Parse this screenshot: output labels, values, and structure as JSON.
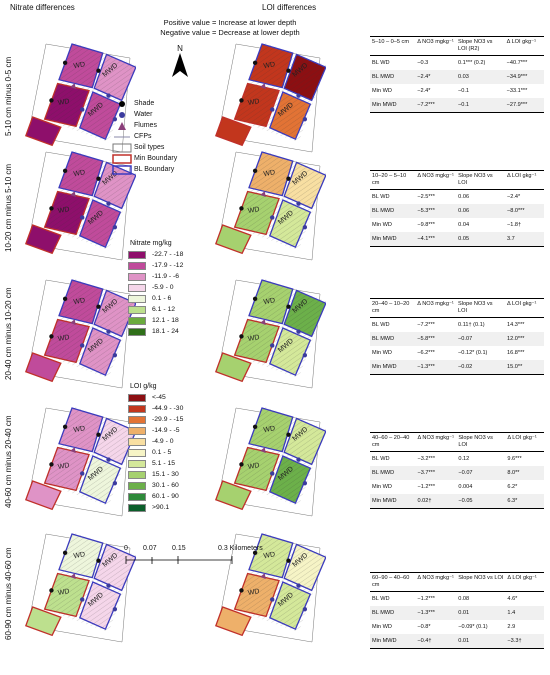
{
  "headers": {
    "nitrate": "Nitrate differences",
    "loi": "LOI differences"
  },
  "notes": {
    "positive": "Positive value = Increase at lower depth",
    "negative": "Negative value = Decrease at lower depth"
  },
  "north": "N",
  "rows": [
    "5-10 cm minus 0-5 cm",
    "10-20 cm minus 5-10 cm",
    "20-40 cm minus 10-20 cm",
    "40-60 cm minus 20-40 cm",
    "60-90 cm minus 40-60 cm"
  ],
  "map_labels": [
    "WD",
    "MWD",
    "WD",
    "MWD"
  ],
  "symbols": [
    {
      "label": "Shade",
      "icon": "black-dot"
    },
    {
      "label": "Water",
      "icon": "blue-dot"
    },
    {
      "label": "Flumes",
      "icon": "purple-triangle"
    },
    {
      "label": "CFPs",
      "icon": "gray-line"
    },
    {
      "label": "Soil types",
      "icon": "gray-box"
    },
    {
      "label": "Min Boundary",
      "icon": "red-box"
    },
    {
      "label": "BL Boundary",
      "icon": "blue-box"
    }
  ],
  "nitrate_legend": {
    "title": "Nitrate mg/kg",
    "items": [
      {
        "label": "-22.7 - -18",
        "color": "#8e0f6b"
      },
      {
        "label": "-17.9 - -12",
        "color": "#c04b9b"
      },
      {
        "label": "-11.9 - -6",
        "color": "#df93c6"
      },
      {
        "label": "-5.9 - 0",
        "color": "#f5d6ea"
      },
      {
        "label": "0.1 - 6",
        "color": "#eef6dc"
      },
      {
        "label": "6.1 - 12",
        "color": "#bde08e"
      },
      {
        "label": "12.1 - 18",
        "color": "#6bab3e"
      },
      {
        "label": "18.1 - 24",
        "color": "#2f6f19"
      }
    ]
  },
  "loi_legend": {
    "title": "LOI g/kg",
    "items": [
      {
        "label": "<-45",
        "color": "#8c0f12"
      },
      {
        "label": "-44.9 - -30",
        "color": "#c2361d"
      },
      {
        "label": "-29.9 - -15",
        "color": "#e27335"
      },
      {
        "label": "-14.9 - -5",
        "color": "#eeb06a"
      },
      {
        "label": "-4.9 - 0",
        "color": "#f8dfa2"
      },
      {
        "label": "0.1 - 5",
        "color": "#f6f4c6"
      },
      {
        "label": "5.1 - 15",
        "color": "#d4e89a"
      },
      {
        "label": "15.1 - 30",
        "color": "#a6d16f"
      },
      {
        "label": "30.1 - 60",
        "color": "#6cb04a"
      },
      {
        "label": "60.1 - 90",
        "color": "#2e8a3a"
      },
      {
        "label": ">90.1",
        "color": "#0b5e2a"
      }
    ]
  },
  "scalebar": {
    "ticks": [
      "0",
      "0.07",
      "0.15",
      "0.3 Kilometers"
    ]
  },
  "tables": [
    {
      "header": [
        "5–10 – 0–5 cm",
        "Δ NO3 mgkg⁻¹",
        "Slope NO3 vs LOI (R2)",
        "Δ LOI gkg⁻¹"
      ],
      "rows": [
        [
          "BL WD",
          "−0.3",
          "0.1*** (0.2)",
          "−40.7***"
        ],
        [
          "BL MWD",
          "−2.4*",
          "0.03",
          "−34.9***"
        ],
        [
          "Min WD",
          "−2.4*",
          "−0.1",
          "−33.1***"
        ],
        [
          "Min MWD",
          "−7.2***",
          "−0.1",
          "−27.9***"
        ]
      ]
    },
    {
      "header": [
        "10–20 – 5–10 cm",
        "Δ NO3 mgkg⁻¹",
        "Slope NO3 vs LOI",
        "Δ LOI gkg⁻¹"
      ],
      "rows": [
        [
          "BL WD",
          "−2.5***",
          "0.06",
          "−2.4*"
        ],
        [
          "BL MWD",
          "−5.3***",
          "0.06",
          "−8.0***"
        ],
        [
          "Min WD",
          "−9.8***",
          "0.04",
          "−1.8†"
        ],
        [
          "Min MWD",
          "−4.1***",
          "0.05",
          "3.7"
        ]
      ]
    },
    {
      "header": [
        "20–40 – 10–20 cm",
        "Δ NO3 mgkg⁻¹",
        "Slope NO3 vs LOI",
        "Δ LOI gkg⁻¹"
      ],
      "rows": [
        [
          "BL WD",
          "−7.2***",
          "0.11† (0.1)",
          "14.3***"
        ],
        [
          "BL MWD",
          "−5.8***",
          "−0.07",
          "12.0***"
        ],
        [
          "Min WD",
          "−6.2***",
          "−0.12* (0.1)",
          "16.8***"
        ],
        [
          "Min MWD",
          "−1.3***",
          "−0.02",
          "15.0**"
        ]
      ]
    },
    {
      "header": [
        "40–60 – 20–40 cm",
        "Δ NO3 mgkg⁻¹",
        "Slope NO3 vs LOI",
        "Δ LOI gkg⁻¹"
      ],
      "rows": [
        [
          "BL WD",
          "−3.2***",
          "0.12",
          "9.6***"
        ],
        [
          "BL MWD",
          "−3.7***",
          "−0.07",
          "8.0**"
        ],
        [
          "Min WD",
          "−1.2***",
          "0.004",
          "6.2*"
        ],
        [
          "Min MWD",
          "0.02†",
          "−0.05",
          "6.3*"
        ]
      ]
    },
    {
      "header": [
        "60–90 – 40–60 cm",
        "Δ NO3 mgkg⁻¹",
        "Slope NO3 vs LOI",
        "Δ LOI gkg⁻¹"
      ],
      "rows": [
        [
          "BL WD",
          "−1.2***",
          "0.08",
          "4.6*"
        ],
        [
          "BL MWD",
          "−1.3***",
          "0.01",
          "1.4"
        ],
        [
          "Min WD",
          "−0.8*",
          "−0.09* (0.1)",
          "2.9"
        ],
        [
          "Min MWD",
          "−0.4†",
          "0.01",
          "−3.3†"
        ]
      ]
    }
  ]
}
